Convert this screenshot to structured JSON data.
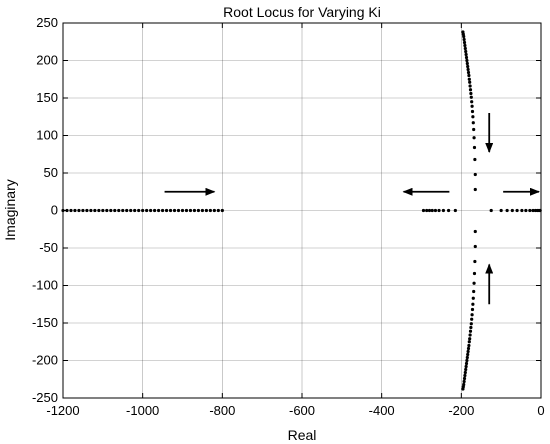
{
  "chart_data": {
    "type": "scatter",
    "title": "Root Locus for Varying Ki",
    "xlabel": "Real",
    "ylabel": "Imaginary",
    "xlim": [
      -1200,
      0
    ],
    "ylim": [
      -250,
      250
    ],
    "grid": true,
    "x_ticks": [
      "-1200",
      "-1000",
      "-800",
      "-600",
      "-400",
      "-200",
      "0"
    ],
    "y_ticks": [
      "250",
      "200",
      "150",
      "100",
      "50",
      "0",
      "-50",
      "-100",
      "-150",
      "-200",
      "-250"
    ],
    "x_tick_values": [
      -1200,
      -1000,
      -800,
      -600,
      -400,
      -200,
      0
    ],
    "y_tick_values": [
      250,
      200,
      150,
      100,
      50,
      0,
      -50,
      -100,
      -150,
      -200,
      -250
    ],
    "series": [
      {
        "marker": "dot",
        "color": "#000000",
        "points": [
          [
            -1200,
            0
          ],
          [
            -1190,
            0
          ],
          [
            -1180,
            0
          ],
          [
            -1170,
            0
          ],
          [
            -1160,
            0
          ],
          [
            -1150,
            0
          ],
          [
            -1140,
            0
          ],
          [
            -1130,
            0
          ],
          [
            -1120,
            0
          ],
          [
            -1110,
            0
          ],
          [
            -1100,
            0
          ],
          [
            -1090,
            0
          ],
          [
            -1080,
            0
          ],
          [
            -1070,
            0
          ],
          [
            -1060,
            0
          ],
          [
            -1050,
            0
          ],
          [
            -1040,
            0
          ],
          [
            -1030,
            0
          ],
          [
            -1020,
            0
          ],
          [
            -1010,
            0
          ],
          [
            -1000,
            0
          ],
          [
            -990,
            0
          ],
          [
            -980,
            0
          ],
          [
            -970,
            0
          ],
          [
            -960,
            0
          ],
          [
            -950,
            0
          ],
          [
            -940,
            0
          ],
          [
            -930,
            0
          ],
          [
            -920,
            0
          ],
          [
            -910,
            0
          ],
          [
            -900,
            0
          ],
          [
            -890,
            0
          ],
          [
            -880,
            0
          ],
          [
            -870,
            0
          ],
          [
            -860,
            0
          ],
          [
            -850,
            0
          ],
          [
            -840,
            0
          ],
          [
            -830,
            0
          ],
          [
            -820,
            0
          ],
          [
            -810,
            0
          ],
          [
            -800,
            0
          ],
          [
            -295,
            0
          ],
          [
            -287,
            0
          ],
          [
            -280,
            0
          ],
          [
            -273,
            0
          ],
          [
            -265,
            0
          ],
          [
            -256,
            0
          ],
          [
            -245,
            0
          ],
          [
            -232,
            0
          ],
          [
            -215,
            0
          ],
          [
            -125,
            0
          ],
          [
            -100,
            0
          ],
          [
            -85,
            0
          ],
          [
            -72,
            0
          ],
          [
            -60,
            0
          ],
          [
            -48,
            0
          ],
          [
            -38,
            0
          ],
          [
            -28,
            0
          ],
          [
            -20,
            0
          ],
          [
            -14,
            0
          ],
          [
            -9,
            0
          ],
          [
            -5,
            0
          ],
          [
            -2,
            0
          ],
          [
            -165,
            28
          ],
          [
            -165,
            48
          ],
          [
            -166,
            68
          ],
          [
            -167,
            84
          ],
          [
            -168,
            97
          ],
          [
            -169,
            108
          ],
          [
            -170,
            117
          ],
          [
            -171,
            125
          ],
          [
            -172,
            132
          ],
          [
            -173,
            139
          ],
          [
            -174,
            145
          ],
          [
            -175,
            151
          ],
          [
            -176,
            156
          ],
          [
            -177,
            161
          ],
          [
            -178,
            166
          ],
          [
            -179,
            171
          ],
          [
            -180,
            175
          ],
          [
            -181,
            180
          ],
          [
            -182,
            184
          ],
          [
            -183,
            188
          ],
          [
            -184,
            192
          ],
          [
            -185,
            196
          ],
          [
            -186,
            200
          ],
          [
            -187,
            204
          ],
          [
            -188,
            208
          ],
          [
            -189,
            212
          ],
          [
            -190,
            216
          ],
          [
            -191,
            220
          ],
          [
            -192,
            224
          ],
          [
            -193,
            228
          ],
          [
            -194,
            232
          ],
          [
            -195,
            235
          ],
          [
            -196,
            238
          ],
          [
            -165,
            -28
          ],
          [
            -165,
            -48
          ],
          [
            -166,
            -68
          ],
          [
            -167,
            -84
          ],
          [
            -168,
            -97
          ],
          [
            -169,
            -108
          ],
          [
            -170,
            -117
          ],
          [
            -171,
            -125
          ],
          [
            -172,
            -132
          ],
          [
            -173,
            -139
          ],
          [
            -174,
            -145
          ],
          [
            -175,
            -151
          ],
          [
            -176,
            -156
          ],
          [
            -177,
            -161
          ],
          [
            -178,
            -166
          ],
          [
            -179,
            -171
          ],
          [
            -180,
            -175
          ],
          [
            -181,
            -180
          ],
          [
            -182,
            -184
          ],
          [
            -183,
            -188
          ],
          [
            -184,
            -192
          ],
          [
            -185,
            -196
          ],
          [
            -186,
            -200
          ],
          [
            -187,
            -204
          ],
          [
            -188,
            -208
          ],
          [
            -189,
            -212
          ],
          [
            -190,
            -216
          ],
          [
            -191,
            -220
          ],
          [
            -192,
            -224
          ],
          [
            -193,
            -228
          ],
          [
            -194,
            -232
          ],
          [
            -195,
            -235
          ],
          [
            -196,
            -238
          ]
        ]
      }
    ],
    "annotations": [
      {
        "type": "arrow",
        "from": [
          -945,
          25
        ],
        "to": [
          -820,
          25
        ]
      },
      {
        "type": "arrow",
        "from": [
          -230,
          25
        ],
        "to": [
          -345,
          25
        ]
      },
      {
        "type": "arrow",
        "from": [
          -95,
          25
        ],
        "to": [
          -5,
          25
        ]
      },
      {
        "type": "arrow",
        "from": [
          -130,
          130
        ],
        "to": [
          -130,
          78
        ]
      },
      {
        "type": "arrow",
        "from": [
          -130,
          -125
        ],
        "to": [
          -130,
          -72
        ]
      }
    ]
  }
}
